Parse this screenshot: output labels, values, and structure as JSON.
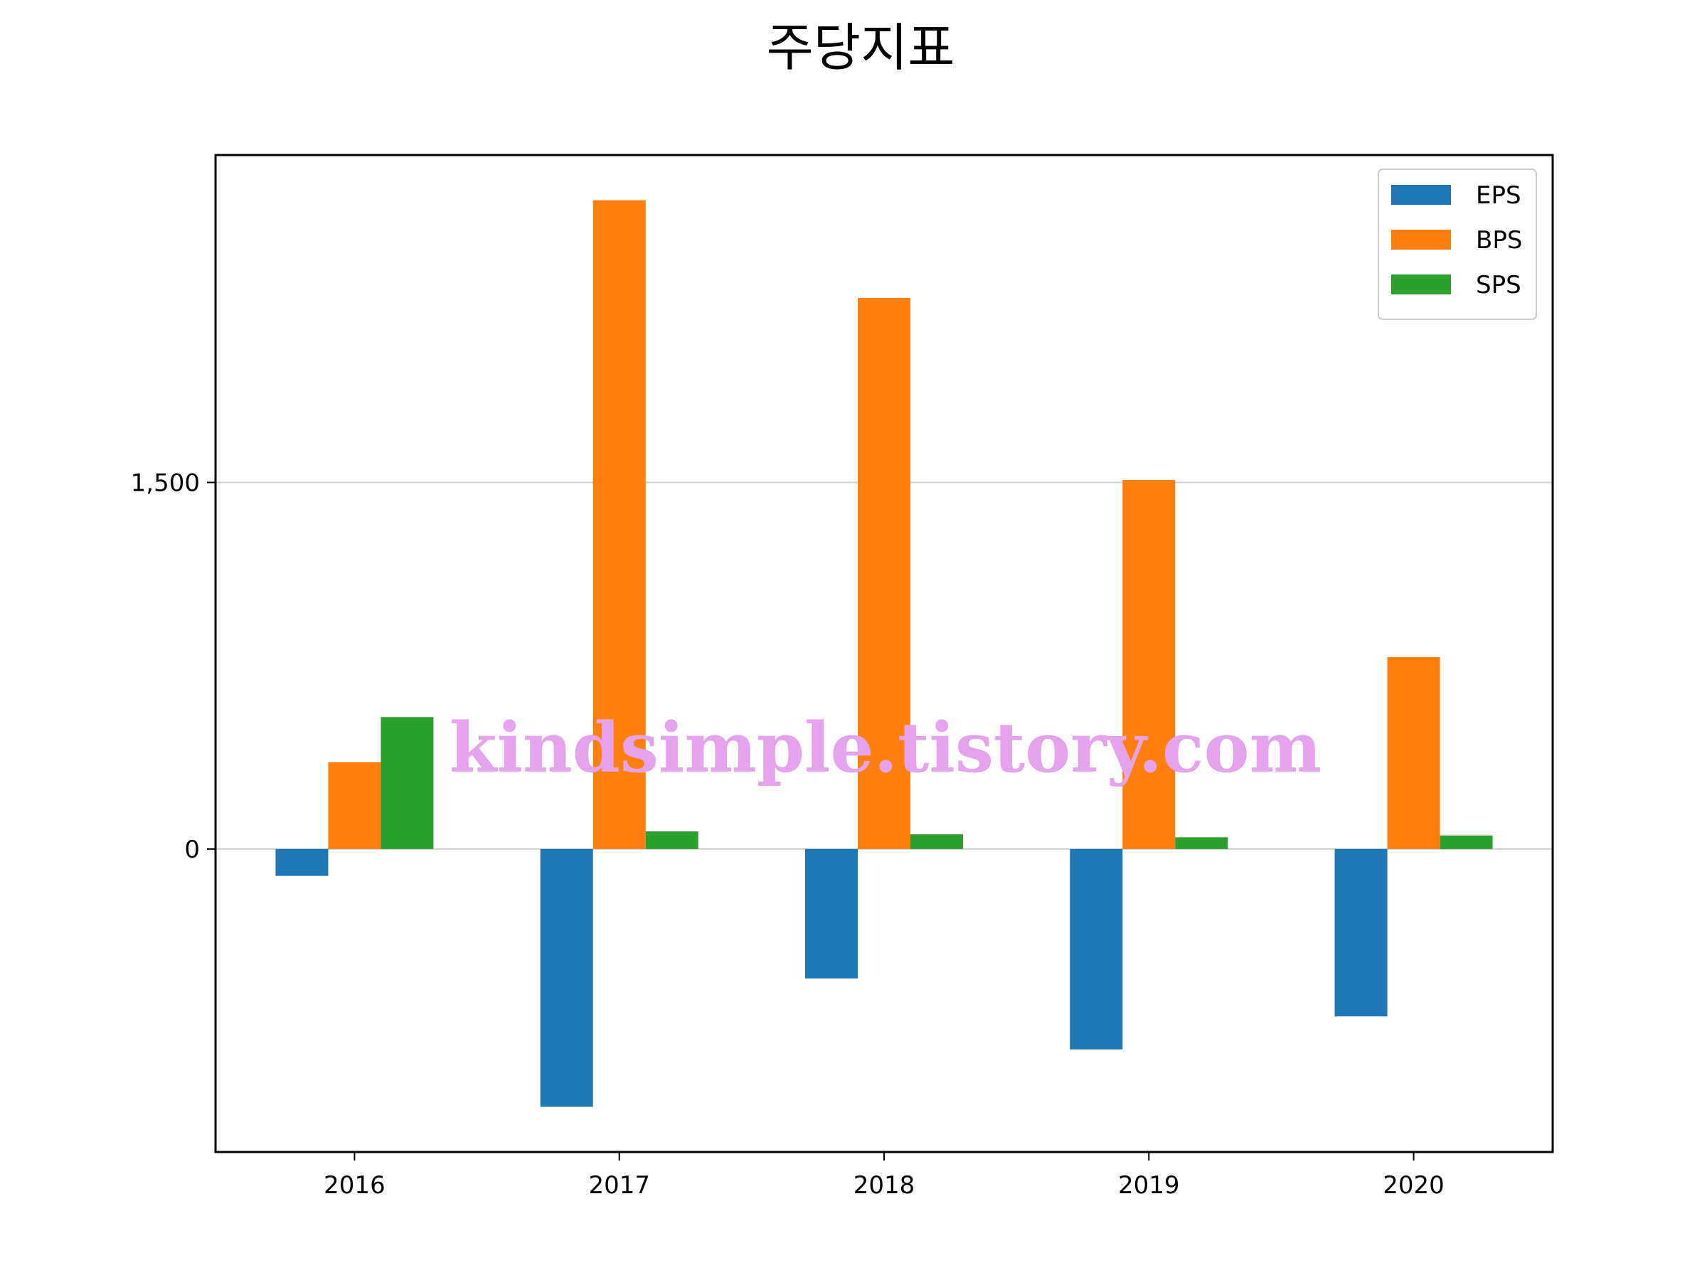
{
  "chart_data": {
    "type": "bar",
    "title": "주당지표",
    "xlabel": "",
    "ylabel": "",
    "categories": [
      "2016",
      "2017",
      "2018",
      "2019",
      "2020"
    ],
    "series": [
      {
        "name": "EPS",
        "color": "#1f77b4",
        "values": [
          -110,
          -1055,
          -530,
          -820,
          -685
        ]
      },
      {
        "name": "BPS",
        "color": "#ff7f0e",
        "values": [
          355,
          2655,
          2255,
          1510,
          785
        ]
      },
      {
        "name": "SPS",
        "color": "#2ca02c",
        "values": [
          540,
          72,
          60,
          48,
          55
        ]
      }
    ],
    "ylim": [
      -1240,
      2840
    ],
    "yticks": [
      0,
      1500
    ],
    "ytick_labels": [
      "0",
      "1,500"
    ],
    "grid": "y",
    "legend": "top-right",
    "watermark": "kindsimple.tistory.com"
  }
}
